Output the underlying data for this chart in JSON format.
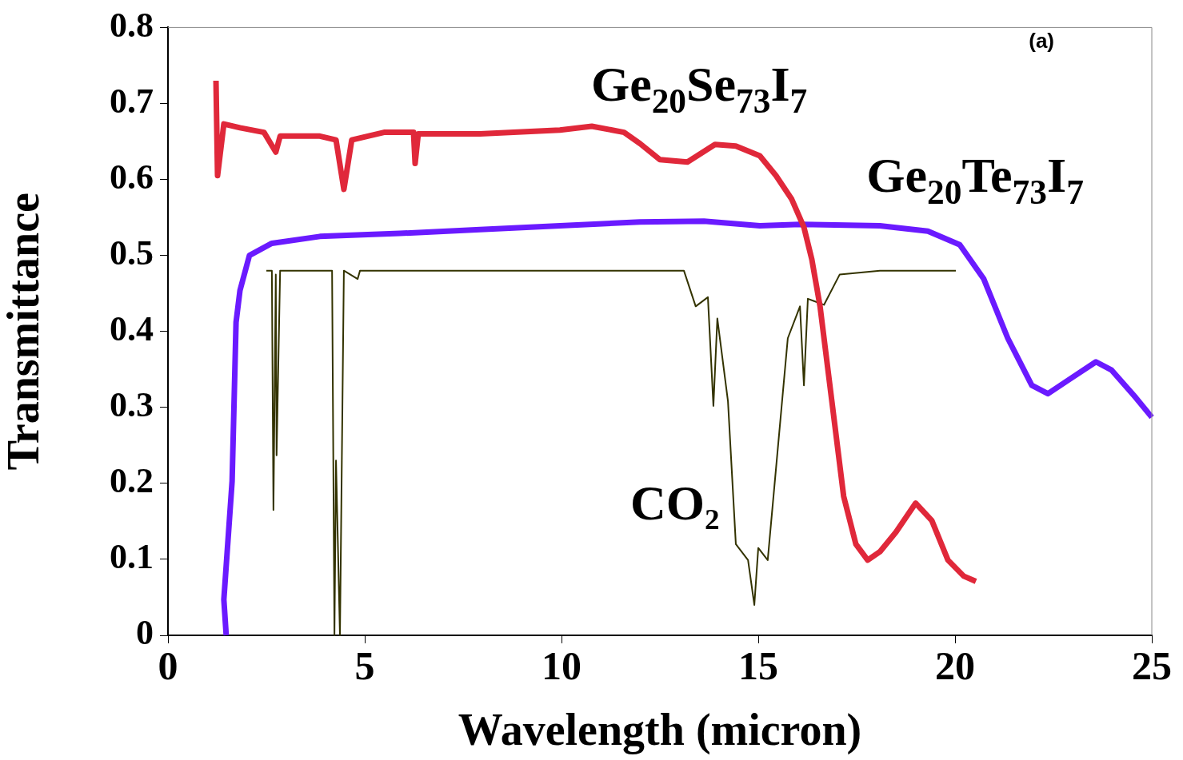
{
  "chart_data": {
    "type": "line",
    "xlabel": "Wavelength (micron)",
    "ylabel": "Transmittance",
    "xlim": [
      0,
      25
    ],
    "ylim": [
      0,
      0.8
    ],
    "xticks": [
      0,
      5,
      10,
      15,
      20,
      25
    ],
    "yticks": [
      0,
      0.1,
      0.2,
      0.3,
      0.4,
      0.5,
      0.6,
      0.7,
      0.8
    ],
    "grid": false,
    "legend": false,
    "marker": "none",
    "line_style": "solid",
    "annotations": [
      "(a)"
    ],
    "series": [
      {
        "name": "Ge$_{20}$Se$_{73}$I$_{7}$",
        "color": "#e0283a",
        "x": [
          1.22,
          1.26,
          1.42,
          1.83,
          2.44,
          2.74,
          2.85,
          3.86,
          4.27,
          4.47,
          4.67,
          5.49,
          6.24,
          6.28,
          6.36,
          7.93,
          9.96,
          10.77,
          11.59,
          12.0,
          12.5,
          13.2,
          13.9,
          14.43,
          15.04,
          15.45,
          15.85,
          16.16,
          16.36,
          16.57,
          16.87,
          17.17,
          17.48,
          17.78,
          18.09,
          18.5,
          19.0,
          19.41,
          19.82,
          20.22,
          20.53
        ],
        "values": [
          0.73,
          0.605,
          0.673,
          0.668,
          0.662,
          0.636,
          0.657,
          0.657,
          0.652,
          0.587,
          0.652,
          0.662,
          0.662,
          0.621,
          0.66,
          0.66,
          0.665,
          0.67,
          0.662,
          0.647,
          0.626,
          0.623,
          0.646,
          0.644,
          0.631,
          0.605,
          0.574,
          0.537,
          0.495,
          0.433,
          0.308,
          0.183,
          0.12,
          0.099,
          0.11,
          0.136,
          0.174,
          0.151,
          0.099,
          0.078,
          0.071
        ]
      },
      {
        "name": "Ge$_{20}$Te$_{73}$I$_{7}$",
        "color": "#6a1aff",
        "x": [
          1.48,
          1.42,
          1.63,
          1.73,
          1.83,
          2.07,
          2.64,
          3.86,
          5.89,
          7.93,
          9.96,
          11.99,
          13.62,
          15.04,
          16.06,
          18.09,
          19.31,
          20.12,
          20.73,
          21.34,
          21.95,
          22.36,
          22.97,
          23.58,
          23.98,
          24.59,
          25
        ],
        "values": [
          0,
          0.047,
          0.203,
          0.412,
          0.454,
          0.5,
          0.516,
          0.525,
          0.529,
          0.534,
          0.539,
          0.544,
          0.545,
          0.539,
          0.541,
          0.539,
          0.532,
          0.514,
          0.469,
          0.391,
          0.329,
          0.318,
          0.339,
          0.36,
          0.349,
          0.313,
          0.287
        ]
      },
      {
        "name": "CO₂",
        "color": "#333300",
        "x": [
          2.5,
          2.64,
          2.68,
          2.74,
          2.76,
          2.85,
          4.17,
          4.23,
          4.27,
          4.37,
          4.47,
          4.82,
          4.88,
          7.93,
          13.11,
          13.41,
          13.72,
          13.86,
          13.96,
          14.23,
          14.43,
          14.74,
          14.9,
          15.0,
          15.24,
          15.75,
          16.06,
          16.16,
          16.26,
          16.67,
          17.07,
          18.09,
          20.02
        ],
        "values": [
          0.48,
          0.48,
          0.165,
          0.475,
          0.237,
          0.48,
          0.48,
          0,
          0.23,
          0,
          0.48,
          0.469,
          0.48,
          0.48,
          0.48,
          0.433,
          0.445,
          0.302,
          0.417,
          0.308,
          0.12,
          0.099,
          0.04,
          0.115,
          0.099,
          0.391,
          0.433,
          0.329,
          0.443,
          0.435,
          0.475,
          0.48,
          0.48
        ]
      }
    ]
  }
}
